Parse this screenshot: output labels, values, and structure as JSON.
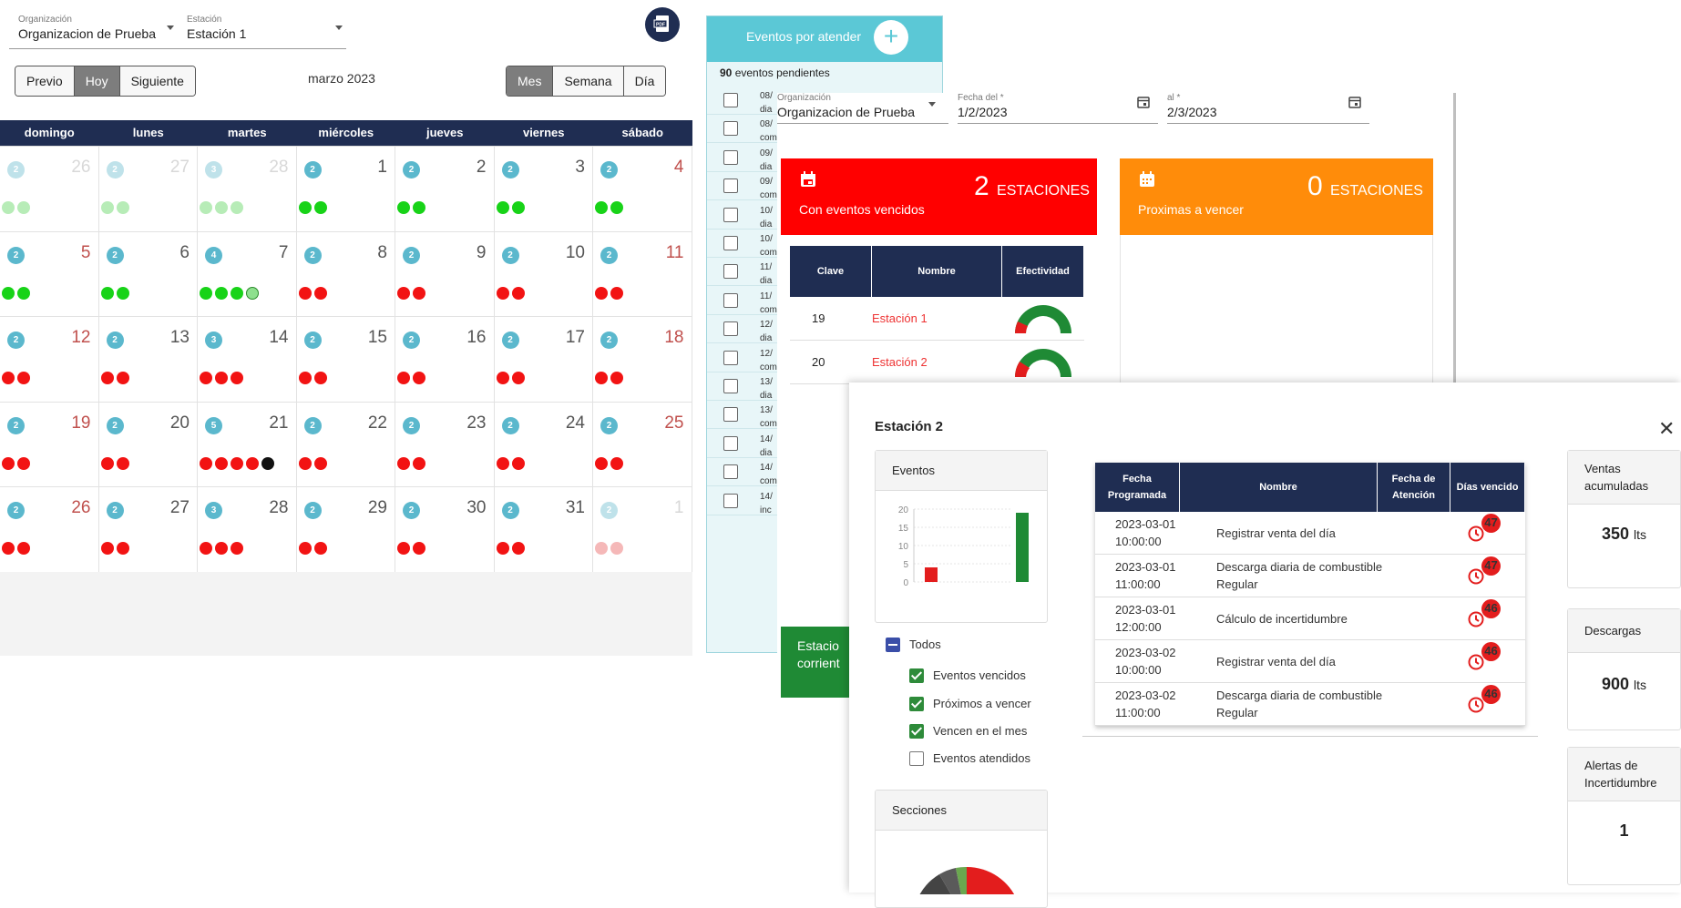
{
  "calendar": {
    "org_label": "Organización",
    "org_value": "Organizacion de Prueba",
    "station_label": "Estación",
    "station_value": "Estación 1",
    "prev_label": "Previo",
    "today_label": "Hoy",
    "next_label": "Siguiente",
    "title": "marzo 2023",
    "view_month": "Mes",
    "view_week": "Semana",
    "view_day": "Día",
    "weekdays": [
      "domingo",
      "lunes",
      "martes",
      "miércoles",
      "jueves",
      "viernes",
      "sábado"
    ],
    "weeks": [
      [
        {
          "day": "26",
          "badge": "2",
          "dots": "gg",
          "faded": true
        },
        {
          "day": "27",
          "badge": "2",
          "dots": "gg",
          "faded": true
        },
        {
          "day": "28",
          "badge": "3",
          "dots": "ggg",
          "faded": true
        },
        {
          "day": "1",
          "badge": "2",
          "dots": "gg"
        },
        {
          "day": "2",
          "badge": "2",
          "dots": "gg"
        },
        {
          "day": "3",
          "badge": "2",
          "dots": "gg"
        },
        {
          "day": "4",
          "badge": "2",
          "dots": "gg"
        }
      ],
      [
        {
          "day": "5",
          "badge": "2",
          "dots": "gg"
        },
        {
          "day": "6",
          "badge": "2",
          "dots": "gg"
        },
        {
          "day": "7",
          "badge": "4",
          "dots": "gggl"
        },
        {
          "day": "8",
          "badge": "2",
          "dots": "rr"
        },
        {
          "day": "9",
          "badge": "2",
          "dots": "rr"
        },
        {
          "day": "10",
          "badge": "2",
          "dots": "rr"
        },
        {
          "day": "11",
          "badge": "2",
          "dots": "rr"
        }
      ],
      [
        {
          "day": "12",
          "badge": "2",
          "dots": "rr"
        },
        {
          "day": "13",
          "badge": "2",
          "dots": "rr"
        },
        {
          "day": "14",
          "badge": "3",
          "dots": "rrr"
        },
        {
          "day": "15",
          "badge": "2",
          "dots": "rr"
        },
        {
          "day": "16",
          "badge": "2",
          "dots": "rr"
        },
        {
          "day": "17",
          "badge": "2",
          "dots": "rr"
        },
        {
          "day": "18",
          "badge": "2",
          "dots": "rr"
        }
      ],
      [
        {
          "day": "19",
          "badge": "2",
          "dots": "rr"
        },
        {
          "day": "20",
          "badge": "2",
          "dots": "rr"
        },
        {
          "day": "21",
          "badge": "5",
          "dots": "rrrrk"
        },
        {
          "day": "22",
          "badge": "2",
          "dots": "rr"
        },
        {
          "day": "23",
          "badge": "2",
          "dots": "rr"
        },
        {
          "day": "24",
          "badge": "2",
          "dots": "rr"
        },
        {
          "day": "25",
          "badge": "2",
          "dots": "rr"
        }
      ],
      [
        {
          "day": "26",
          "badge": "2",
          "dots": "rr"
        },
        {
          "day": "27",
          "badge": "2",
          "dots": "rr"
        },
        {
          "day": "28",
          "badge": "3",
          "dots": "rrr"
        },
        {
          "day": "29",
          "badge": "2",
          "dots": "rr"
        },
        {
          "day": "30",
          "badge": "2",
          "dots": "rr"
        },
        {
          "day": "31",
          "badge": "2",
          "dots": "rr"
        },
        {
          "day": "1",
          "badge": "2",
          "dots": "rr",
          "faded": true
        }
      ]
    ]
  },
  "events": {
    "title": "Eventos por atender",
    "pending_count": "90",
    "pending_label": "eventos pendientes",
    "rows": [
      {
        "l1": "08/",
        "l2": "dia"
      },
      {
        "l1": "08/",
        "l2": "com"
      },
      {
        "l1": "09/",
        "l2": "dia"
      },
      {
        "l1": "09/",
        "l2": "com"
      },
      {
        "l1": "10/",
        "l2": "dia"
      },
      {
        "l1": "10/",
        "l2": "com"
      },
      {
        "l1": "11/",
        "l2": "dia"
      },
      {
        "l1": "11/",
        "l2": "com"
      },
      {
        "l1": "12/",
        "l2": "dia"
      },
      {
        "l1": "12/",
        "l2": "com"
      },
      {
        "l1": "13/",
        "l2": "dia"
      },
      {
        "l1": "13/",
        "l2": "com"
      },
      {
        "l1": "14/",
        "l2": "dia"
      },
      {
        "l1": "14/",
        "l2": "com"
      },
      {
        "l1": "14/",
        "l2": "inc"
      }
    ]
  },
  "dashboard": {
    "org_label": "Organización",
    "org_value": "Organizacion de Prueba",
    "from_label": "Fecha del *",
    "from_value": "1/2/2023",
    "to_label": "al *",
    "to_value": "2/3/2023",
    "overdue_count": "2",
    "overdue_unit": "ESTACIONES",
    "overdue_caption": "Con eventos vencidos",
    "upcoming_count": "0",
    "upcoming_unit": "ESTACIONES",
    "upcoming_caption": "Proximas a vencer",
    "table_headers": [
      "Clave",
      "Nombre",
      "Efectividad"
    ],
    "table_rows": [
      {
        "clave": "19",
        "nombre": "Estación 1"
      },
      {
        "clave": "20",
        "nombre": "Estación 2"
      }
    ],
    "green_card_line1": "Estacio",
    "green_card_line2": "corrient",
    "colors": {
      "overdue": "#ff0000",
      "upcoming": "#ff8c0a",
      "ok": "#1f8a35",
      "navy": "#1f2d52"
    }
  },
  "modal": {
    "title": "Estación 2",
    "events_box_title": "Eventos",
    "chart_data": {
      "type": "bar",
      "title": "Eventos",
      "categories": [
        "",
        ""
      ],
      "values": [
        4,
        19
      ],
      "colors": [
        "#e31d1d",
        "#1f8a35"
      ],
      "ylim": [
        0,
        20
      ],
      "yticks": [
        "0",
        "5",
        "10",
        "15",
        "20"
      ]
    },
    "filters": {
      "all": "Todos",
      "overdue": "Eventos vencidos",
      "upcoming": "Próximos a vencer",
      "month": "Vencen en el mes",
      "attended": "Eventos atendidos"
    },
    "sections_title": "Secciones",
    "table_headers": [
      "Fecha Programada",
      "Nombre",
      "Fecha de Atención",
      "Días vencido"
    ],
    "table_rows": [
      {
        "date": "2023-03-01",
        "time": "10:00:00",
        "name": "Registrar venta del día",
        "days": "47"
      },
      {
        "date": "2023-03-01",
        "time": "11:00:00",
        "name": "Descarga diaria de combustible Regular",
        "days": "47"
      },
      {
        "date": "2023-03-01",
        "time": "12:00:00",
        "name": "Cálculo de incertidumbre",
        "days": "46"
      },
      {
        "date": "2023-03-02",
        "time": "10:00:00",
        "name": "Registrar venta del día",
        "days": "46"
      },
      {
        "date": "2023-03-02",
        "time": "11:00:00",
        "name": "Descarga diaria de combustible Regular",
        "days": "46"
      }
    ],
    "sales_title": "Ventas acumuladas",
    "sales_value": "350",
    "sales_unit": "lts",
    "downloads_title": "Descargas",
    "downloads_value": "900",
    "downloads_unit": "lts",
    "alerts_title": "Alertas de Incertidumbre",
    "alerts_value": "1"
  }
}
